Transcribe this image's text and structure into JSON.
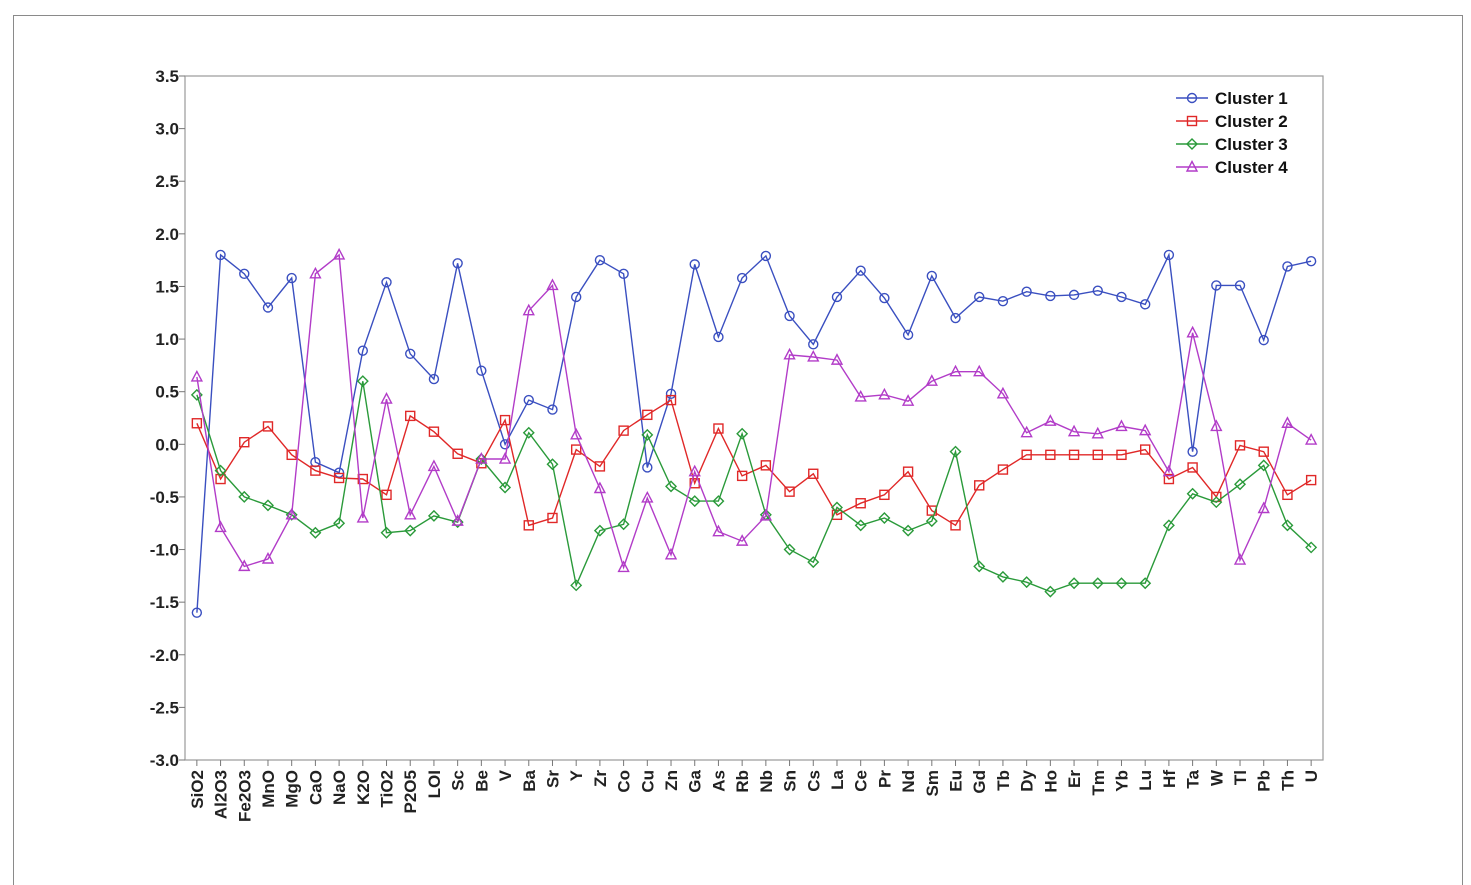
{
  "chart_data": {
    "type": "line",
    "title": "",
    "xlabel": "",
    "ylabel": "",
    "ylim": [
      -3.0,
      3.5
    ],
    "yticks": [
      "3.5",
      "3.0",
      "2.5",
      "2.0",
      "1.5",
      "1.0",
      "0.5",
      "0.0",
      "-0.5",
      "-1.0",
      "-1.5",
      "-2.0",
      "-2.5",
      "-3.0"
    ],
    "grid": false,
    "legend_position": "top-right",
    "categories": [
      "SiO2",
      "Al2O3",
      "Fe2O3",
      "MnO",
      "MgO",
      "CaO",
      "NaO",
      "K2O",
      "TiO2",
      "P2O5",
      "LOI",
      "Sc",
      "Be",
      "V",
      "Ba",
      "Sr",
      "Y",
      "Zr",
      "Co",
      "Cu",
      "Zn",
      "Ga",
      "As",
      "Rb",
      "Nb",
      "Sn",
      "Cs",
      "La",
      "Ce",
      "Pr",
      "Nd",
      "Sm",
      "Eu",
      "Gd",
      "Tb",
      "Dy",
      "Ho",
      "Er",
      "Tm",
      "Yb",
      "Lu",
      "Hf",
      "Ta",
      "W",
      "Tl",
      "Pb",
      "Th",
      "U"
    ],
    "series": [
      {
        "name": "Cluster  1",
        "color": "#3a4fc0",
        "marker": "circle",
        "values": [
          -1.6,
          1.8,
          1.62,
          1.3,
          1.58,
          -0.17,
          -0.27,
          0.89,
          1.54,
          0.86,
          0.62,
          1.72,
          0.7,
          0.0,
          0.42,
          0.33,
          1.4,
          1.75,
          1.62,
          -0.22,
          0.48,
          1.71,
          1.02,
          1.58,
          1.79,
          1.22,
          0.95,
          1.4,
          1.65,
          1.39,
          1.04,
          1.6,
          1.2,
          1.4,
          1.36,
          1.45,
          1.41,
          1.42,
          1.46,
          1.4,
          1.33,
          1.8,
          -0.07,
          1.51,
          1.51,
          0.99,
          1.69,
          1.74
        ]
      },
      {
        "name": "Cluster  2",
        "color": "#e02828",
        "marker": "square",
        "values": [
          0.2,
          -0.33,
          0.02,
          0.17,
          -0.1,
          -0.25,
          -0.32,
          -0.33,
          -0.48,
          0.27,
          0.12,
          -0.09,
          -0.18,
          0.23,
          -0.77,
          -0.7,
          -0.05,
          -0.21,
          0.13,
          0.28,
          0.42,
          -0.37,
          0.15,
          -0.3,
          -0.2,
          -0.45,
          -0.28,
          -0.67,
          -0.56,
          -0.48,
          -0.26,
          -0.63,
          -0.77,
          -0.39,
          -0.24,
          -0.1,
          -0.1,
          -0.1,
          -0.1,
          -0.1,
          -0.05,
          -0.33,
          -0.22,
          -0.5,
          -0.01,
          -0.07,
          -0.48,
          -0.34
        ]
      },
      {
        "name": "Cluster  3",
        "color": "#2a9a3a",
        "marker": "diamond",
        "values": [
          0.47,
          -0.25,
          -0.5,
          -0.58,
          -0.67,
          -0.84,
          -0.75,
          0.6,
          -0.84,
          -0.82,
          -0.68,
          -0.74,
          -0.14,
          -0.41,
          0.11,
          -0.19,
          -1.34,
          -0.82,
          -0.76,
          0.09,
          -0.4,
          -0.54,
          -0.54,
          0.1,
          -0.67,
          -1.0,
          -1.12,
          -0.6,
          -0.77,
          -0.7,
          -0.82,
          -0.73,
          -0.07,
          -1.16,
          -1.26,
          -1.31,
          -1.4,
          -1.32,
          -1.32,
          -1.32,
          -1.32,
          -0.77,
          -0.47,
          -0.55,
          -0.38,
          -0.2,
          -0.77,
          -0.98
        ]
      },
      {
        "name": "Cluster  4",
        "color": "#b23cc8",
        "marker": "triangle",
        "values": [
          0.64,
          -0.79,
          -1.16,
          -1.09,
          -0.67,
          1.62,
          1.8,
          -0.7,
          0.43,
          -0.67,
          -0.21,
          -0.73,
          -0.14,
          -0.14,
          1.27,
          1.51,
          0.09,
          -0.42,
          -1.17,
          -0.51,
          -1.05,
          -0.26,
          -0.83,
          -0.92,
          -0.68,
          0.85,
          0.83,
          0.8,
          0.45,
          0.47,
          0.41,
          0.6,
          0.69,
          0.69,
          0.48,
          0.11,
          0.22,
          0.12,
          0.1,
          0.17,
          0.13,
          -0.26,
          1.06,
          0.17,
          -1.1,
          -0.61,
          0.2,
          0.04
        ]
      }
    ]
  }
}
